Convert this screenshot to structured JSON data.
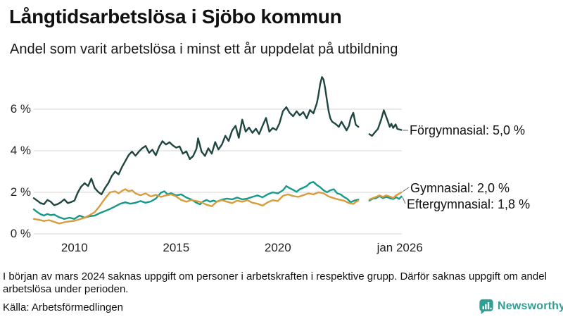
{
  "header": {
    "title": "Långtidsarbetslösa i Sjöbo kommun",
    "subtitle": "Andel som varit arbetslösa i minst ett år uppdelat på utbildning"
  },
  "chart_data": {
    "type": "line",
    "title": "Långtidsarbetslösa i Sjöbo kommun",
    "subtitle": "Andel som varit arbetslösa i minst ett år uppdelat på utbildning",
    "unit": "%",
    "x_domain": [
      2008.0,
      2026.08
    ],
    "ylim": [
      0,
      7.8
    ],
    "grid": "horizontal",
    "y_ticks": [
      {
        "value": 0,
        "label": "0 %"
      },
      {
        "value": 2,
        "label": "2 %"
      },
      {
        "value": 4,
        "label": "4 %"
      },
      {
        "value": 6,
        "label": "6 %"
      }
    ],
    "x_ticks": [
      {
        "year": 2010,
        "label": "2010"
      },
      {
        "year": 2015,
        "label": "2015"
      },
      {
        "year": 2020,
        "label": "2020"
      },
      {
        "year": 2026.0,
        "label": "jan 2026"
      }
    ],
    "data_gap": "2024.0–2024.5 (inga värden, se fotnot)",
    "series": [
      {
        "name": "Förgymnasial",
        "label": "Förgymnasial: 5,0 %",
        "color": "#1f4640",
        "points": [
          [
            2008,
            1.72
          ],
          [
            2008.17,
            1.6
          ],
          [
            2008.33,
            1.48
          ],
          [
            2008.5,
            1.43
          ],
          [
            2008.67,
            1.63
          ],
          [
            2008.83,
            1.55
          ],
          [
            2009,
            1.38
          ],
          [
            2009.17,
            1.43
          ],
          [
            2009.33,
            1.52
          ],
          [
            2009.5,
            1.66
          ],
          [
            2009.67,
            1.48
          ],
          [
            2009.83,
            1.53
          ],
          [
            2010,
            1.6
          ],
          [
            2010.17,
            2.0
          ],
          [
            2010.33,
            2.27
          ],
          [
            2010.5,
            2.44
          ],
          [
            2010.67,
            2.3
          ],
          [
            2010.83,
            2.66
          ],
          [
            2011,
            2.2
          ],
          [
            2011.17,
            2.02
          ],
          [
            2011.33,
            1.9
          ],
          [
            2011.5,
            2.2
          ],
          [
            2011.67,
            2.45
          ],
          [
            2011.83,
            2.78
          ],
          [
            2012,
            3.0
          ],
          [
            2012.17,
            2.86
          ],
          [
            2012.33,
            3.2
          ],
          [
            2012.5,
            3.5
          ],
          [
            2012.67,
            3.8
          ],
          [
            2012.83,
            3.96
          ],
          [
            2013,
            3.76
          ],
          [
            2013.17,
            3.96
          ],
          [
            2013.33,
            4.12
          ],
          [
            2013.5,
            4.23
          ],
          [
            2013.67,
            3.9
          ],
          [
            2013.83,
            4.05
          ],
          [
            2014,
            3.78
          ],
          [
            2014.17,
            4.2
          ],
          [
            2014.33,
            4.46
          ],
          [
            2014.5,
            4.3
          ],
          [
            2014.67,
            4.41
          ],
          [
            2014.83,
            4.26
          ],
          [
            2015,
            4.15
          ],
          [
            2015.17,
            4.21
          ],
          [
            2015.33,
            3.86
          ],
          [
            2015.5,
            3.97
          ],
          [
            2015.67,
            3.6
          ],
          [
            2015.83,
            3.74
          ],
          [
            2016,
            4.1
          ],
          [
            2016.08,
            4.6
          ],
          [
            2016.25,
            3.96
          ],
          [
            2016.42,
            3.75
          ],
          [
            2016.58,
            4.12
          ],
          [
            2016.75,
            3.86
          ],
          [
            2016.92,
            4.42
          ],
          [
            2017.08,
            4.06
          ],
          [
            2017.25,
            4.3
          ],
          [
            2017.42,
            4.72
          ],
          [
            2017.58,
            4.47
          ],
          [
            2017.75,
            4.97
          ],
          [
            2017.92,
            5.2
          ],
          [
            2018.08,
            4.62
          ],
          [
            2018.25,
            5.5
          ],
          [
            2018.42,
            4.92
          ],
          [
            2018.58,
            5.12
          ],
          [
            2018.75,
            4.86
          ],
          [
            2018.92,
            5.06
          ],
          [
            2019.08,
            4.8
          ],
          [
            2019.25,
            5.2
          ],
          [
            2019.42,
            5.58
          ],
          [
            2019.58,
            4.92
          ],
          [
            2019.75,
            5.1
          ],
          [
            2019.92,
            5.0
          ],
          [
            2020.08,
            5.32
          ],
          [
            2020.25,
            5.9
          ],
          [
            2020.42,
            6.1
          ],
          [
            2020.58,
            5.82
          ],
          [
            2020.75,
            5.66
          ],
          [
            2020.92,
            5.9
          ],
          [
            2021.08,
            5.7
          ],
          [
            2021.25,
            5.86
          ],
          [
            2021.42,
            5.56
          ],
          [
            2021.58,
            5.96
          ],
          [
            2021.75,
            5.8
          ],
          [
            2021.92,
            6.3
          ],
          [
            2022,
            6.7
          ],
          [
            2022.08,
            7.2
          ],
          [
            2022.17,
            7.55
          ],
          [
            2022.25,
            7.42
          ],
          [
            2022.33,
            7.0
          ],
          [
            2022.42,
            6.4
          ],
          [
            2022.5,
            5.9
          ],
          [
            2022.58,
            5.56
          ],
          [
            2022.67,
            5.4
          ],
          [
            2022.83,
            5.3
          ],
          [
            2023,
            5.15
          ],
          [
            2023.13,
            5.4
          ],
          [
            2023.25,
            5.2
          ],
          [
            2023.38,
            4.98
          ],
          [
            2023.5,
            5.2
          ],
          [
            2023.58,
            5.55
          ],
          [
            2023.71,
            5.83
          ],
          [
            2023.83,
            5.25
          ],
          [
            2023.96,
            5.15
          ],
          [
            2024.2,
            null
          ],
          [
            2024.5,
            4.8
          ],
          [
            2024.63,
            4.72
          ],
          [
            2024.75,
            4.86
          ],
          [
            2024.92,
            5.05
          ],
          [
            2025.08,
            5.5
          ],
          [
            2025.21,
            5.95
          ],
          [
            2025.38,
            5.5
          ],
          [
            2025.5,
            5.15
          ],
          [
            2025.58,
            5.3
          ],
          [
            2025.67,
            5.1
          ],
          [
            2025.79,
            5.27
          ],
          [
            2025.88,
            5.05
          ],
          [
            2026.08,
            5.0
          ]
        ]
      },
      {
        "name": "Gymnasial",
        "label": "Gymnasial: 2,0 %",
        "color": "#d79c3c",
        "points": [
          [
            2008,
            0.72
          ],
          [
            2008.25,
            0.68
          ],
          [
            2008.5,
            0.62
          ],
          [
            2008.75,
            0.66
          ],
          [
            2009,
            0.58
          ],
          [
            2009.25,
            0.5
          ],
          [
            2009.5,
            0.56
          ],
          [
            2009.75,
            0.6
          ],
          [
            2010,
            0.63
          ],
          [
            2010.25,
            0.7
          ],
          [
            2010.5,
            0.78
          ],
          [
            2010.75,
            0.9
          ],
          [
            2011,
            1.05
          ],
          [
            2011.25,
            1.35
          ],
          [
            2011.5,
            1.7
          ],
          [
            2011.75,
            2.0
          ],
          [
            2012,
            2.05
          ],
          [
            2012.17,
            1.95
          ],
          [
            2012.33,
            2.06
          ],
          [
            2012.5,
            2.15
          ],
          [
            2012.67,
            2.05
          ],
          [
            2012.83,
            2.1
          ],
          [
            2013,
            1.95
          ],
          [
            2013.25,
            1.86
          ],
          [
            2013.5,
            1.95
          ],
          [
            2013.75,
            1.8
          ],
          [
            2014,
            1.88
          ],
          [
            2014.25,
            1.78
          ],
          [
            2014.5,
            1.85
          ],
          [
            2014.75,
            1.9
          ],
          [
            2015,
            1.8
          ],
          [
            2015.25,
            1.63
          ],
          [
            2015.5,
            1.55
          ],
          [
            2015.75,
            1.63
          ],
          [
            2016,
            1.58
          ],
          [
            2016.25,
            1.52
          ],
          [
            2016.5,
            1.4
          ],
          [
            2016.75,
            1.33
          ],
          [
            2017,
            1.55
          ],
          [
            2017.25,
            1.62
          ],
          [
            2017.5,
            1.55
          ],
          [
            2017.75,
            1.48
          ],
          [
            2018,
            1.6
          ],
          [
            2018.25,
            1.55
          ],
          [
            2018.5,
            1.62
          ],
          [
            2018.75,
            1.5
          ],
          [
            2019,
            1.45
          ],
          [
            2019.25,
            1.36
          ],
          [
            2019.5,
            1.52
          ],
          [
            2019.75,
            1.62
          ],
          [
            2020,
            1.58
          ],
          [
            2020.25,
            1.83
          ],
          [
            2020.5,
            1.9
          ],
          [
            2020.75,
            1.82
          ],
          [
            2021,
            1.78
          ],
          [
            2021.25,
            1.86
          ],
          [
            2021.5,
            1.95
          ],
          [
            2021.75,
            1.9
          ],
          [
            2022,
            2.0
          ],
          [
            2022.25,
            1.95
          ],
          [
            2022.5,
            1.8
          ],
          [
            2022.75,
            1.72
          ],
          [
            2023,
            1.65
          ],
          [
            2023.25,
            1.6
          ],
          [
            2023.5,
            1.48
          ],
          [
            2023.71,
            1.44
          ],
          [
            2023.85,
            1.55
          ],
          [
            2023.96,
            1.6
          ],
          [
            2024.2,
            null
          ],
          [
            2024.5,
            1.65
          ],
          [
            2024.67,
            1.72
          ],
          [
            2024.83,
            1.78
          ],
          [
            2025,
            1.85
          ],
          [
            2025.17,
            1.78
          ],
          [
            2025.33,
            1.85
          ],
          [
            2025.5,
            1.8
          ],
          [
            2025.67,
            1.73
          ],
          [
            2025.83,
            1.86
          ],
          [
            2026.08,
            2.0
          ]
        ]
      },
      {
        "name": "Eftergymnasial",
        "label": "Eftergymnasial: 1,8 %",
        "color": "#17998a",
        "points": [
          [
            2008,
            1.18
          ],
          [
            2008.17,
            1.05
          ],
          [
            2008.33,
            0.95
          ],
          [
            2008.5,
            0.88
          ],
          [
            2008.67,
            0.96
          ],
          [
            2008.83,
            0.9
          ],
          [
            2009,
            0.93
          ],
          [
            2009.25,
            0.8
          ],
          [
            2009.5,
            0.72
          ],
          [
            2009.75,
            0.78
          ],
          [
            2010,
            0.72
          ],
          [
            2010.25,
            0.88
          ],
          [
            2010.5,
            0.78
          ],
          [
            2010.75,
            0.85
          ],
          [
            2011,
            0.88
          ],
          [
            2011.25,
            1.0
          ],
          [
            2011.5,
            1.1
          ],
          [
            2011.75,
            1.2
          ],
          [
            2012,
            1.32
          ],
          [
            2012.25,
            1.45
          ],
          [
            2012.5,
            1.52
          ],
          [
            2012.75,
            1.45
          ],
          [
            2013,
            1.5
          ],
          [
            2013.25,
            1.58
          ],
          [
            2013.5,
            1.5
          ],
          [
            2013.75,
            1.56
          ],
          [
            2014,
            1.7
          ],
          [
            2014.25,
            1.98
          ],
          [
            2014.42,
            2.05
          ],
          [
            2014.58,
            1.9
          ],
          [
            2014.75,
            1.96
          ],
          [
            2015,
            1.85
          ],
          [
            2015.25,
            1.9
          ],
          [
            2015.5,
            1.75
          ],
          [
            2015.75,
            1.65
          ],
          [
            2016,
            1.5
          ],
          [
            2016.17,
            1.42
          ],
          [
            2016.33,
            1.56
          ],
          [
            2016.5,
            1.63
          ],
          [
            2016.67,
            1.55
          ],
          [
            2016.83,
            1.6
          ],
          [
            2017,
            1.55
          ],
          [
            2017.25,
            1.65
          ],
          [
            2017.5,
            1.7
          ],
          [
            2017.75,
            1.66
          ],
          [
            2018,
            1.75
          ],
          [
            2018.25,
            1.66
          ],
          [
            2018.5,
            1.7
          ],
          [
            2018.75,
            1.78
          ],
          [
            2019,
            1.85
          ],
          [
            2019.25,
            1.76
          ],
          [
            2019.5,
            1.9
          ],
          [
            2019.75,
            2.0
          ],
          [
            2020,
            1.95
          ],
          [
            2020.25,
            2.1
          ],
          [
            2020.42,
            2.3
          ],
          [
            2020.58,
            2.2
          ],
          [
            2020.75,
            2.12
          ],
          [
            2020.92,
            2.02
          ],
          [
            2021.08,
            2.15
          ],
          [
            2021.25,
            2.22
          ],
          [
            2021.42,
            2.3
          ],
          [
            2021.58,
            2.45
          ],
          [
            2021.75,
            2.5
          ],
          [
            2021.92,
            2.35
          ],
          [
            2022.08,
            2.25
          ],
          [
            2022.25,
            2.1
          ],
          [
            2022.42,
            2.0
          ],
          [
            2022.58,
            2.1
          ],
          [
            2022.75,
            2.15
          ],
          [
            2022.92,
            1.95
          ],
          [
            2023.08,
            1.9
          ],
          [
            2023.25,
            1.78
          ],
          [
            2023.42,
            1.68
          ],
          [
            2023.58,
            1.52
          ],
          [
            2023.75,
            1.6
          ],
          [
            2023.96,
            1.65
          ],
          [
            2024.2,
            null
          ],
          [
            2024.5,
            1.6
          ],
          [
            2024.67,
            1.7
          ],
          [
            2024.83,
            1.72
          ],
          [
            2025,
            1.82
          ],
          [
            2025.17,
            1.72
          ],
          [
            2025.33,
            1.78
          ],
          [
            2025.5,
            1.72
          ],
          [
            2025.67,
            1.68
          ],
          [
            2025.83,
            1.76
          ],
          [
            2025.96,
            1.68
          ],
          [
            2026.08,
            1.8
          ]
        ]
      }
    ],
    "legend_position": "right-end-labels"
  },
  "footer": {
    "note": "I början av mars 2024 saknas uppgift om personer i arbetskraften i respektive grupp. Därför saknas uppgift om andel arbetslösa under perioden.",
    "source": "Källa: Arbetsförmedlingen",
    "logo_text": "Newsworthy"
  },
  "colors": {
    "forgymnasial": "#1f4640",
    "gymnasial": "#d79c3c",
    "eftergymnasial": "#17998a",
    "grid": "#dddddd",
    "brand": "#2f9e94"
  }
}
